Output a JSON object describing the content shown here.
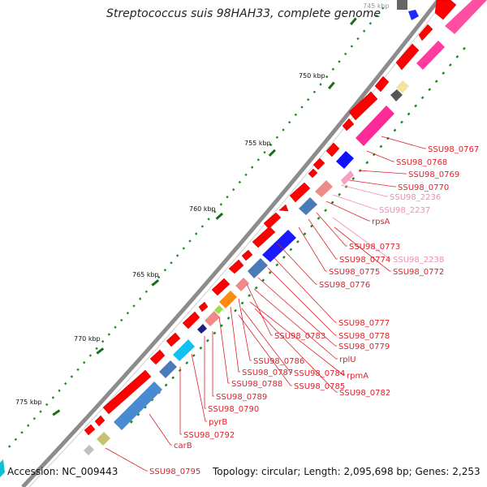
{
  "title": "Streptococcus suis 98HAH33, complete genome",
  "footer": {
    "accession": "Accession: NC_009443",
    "summary": "Topology: circular; Length: 2,095,698 bp; Genes: 2,253"
  },
  "scale_labels": [
    "745 kbp",
    "750 kbp",
    "755 kbp",
    "760 kbp",
    "765 kbp",
    "770 kbp",
    "775 kbp"
  ],
  "gene_labels": [
    {
      "text": "SSU98_0767",
      "color": "#e0202a"
    },
    {
      "text": "SSU98_0768",
      "color": "#e0202a"
    },
    {
      "text": "SSU98_0769",
      "color": "#e0202a"
    },
    {
      "text": "SSU98_0770",
      "color": "#e0202a"
    },
    {
      "text": "SSU98_2236",
      "color": "#f08cb4"
    },
    {
      "text": "SSU98_2237",
      "color": "#f08cb4"
    },
    {
      "text": "rpsA",
      "color": "#e0202a"
    },
    {
      "text": "SSU98_0773",
      "color": "#e0202a"
    },
    {
      "text": "SSU98_2238",
      "color": "#f08cb4"
    },
    {
      "text": "SSU98_0774",
      "color": "#e0202a"
    },
    {
      "text": "SSU98_0775",
      "color": "#e0202a"
    },
    {
      "text": "SSU98_0772",
      "color": "#e0202a"
    },
    {
      "text": "SSU98_0776",
      "color": "#e0202a"
    },
    {
      "text": "SSU98_0777",
      "color": "#e0202a"
    },
    {
      "text": "SSU98_0778",
      "color": "#e0202a"
    },
    {
      "text": "SSU98_0779",
      "color": "#e0202a"
    },
    {
      "text": "SSU98_0783",
      "color": "#e0202a"
    },
    {
      "text": "rplU",
      "color": "#e0202a"
    },
    {
      "text": "SSU98_0786",
      "color": "#e0202a"
    },
    {
      "text": "rpmA",
      "color": "#e0202a"
    },
    {
      "text": "SSU98_0787",
      "color": "#e0202a"
    },
    {
      "text": "SSU98_0784",
      "color": "#e0202a"
    },
    {
      "text": "SSU98_0788",
      "color": "#e0202a"
    },
    {
      "text": "SSU98_0785",
      "color": "#e0202a"
    },
    {
      "text": "SSU98_0782",
      "color": "#e0202a"
    },
    {
      "text": "SSU98_0789",
      "color": "#e0202a"
    },
    {
      "text": "SSU98_0790",
      "color": "#e0202a"
    },
    {
      "text": "pyrB",
      "color": "#e0202a"
    },
    {
      "text": "SSU98_0792",
      "color": "#e0202a"
    },
    {
      "text": "carB",
      "color": "#e0202a"
    },
    {
      "text": "SSU98_0795",
      "color": "#e0202a"
    }
  ],
  "colors": {
    "backbone": "#8c8c8c",
    "cds": "#ff0000",
    "dot": "#1a8a1a",
    "tick": "#1a6e1a"
  }
}
